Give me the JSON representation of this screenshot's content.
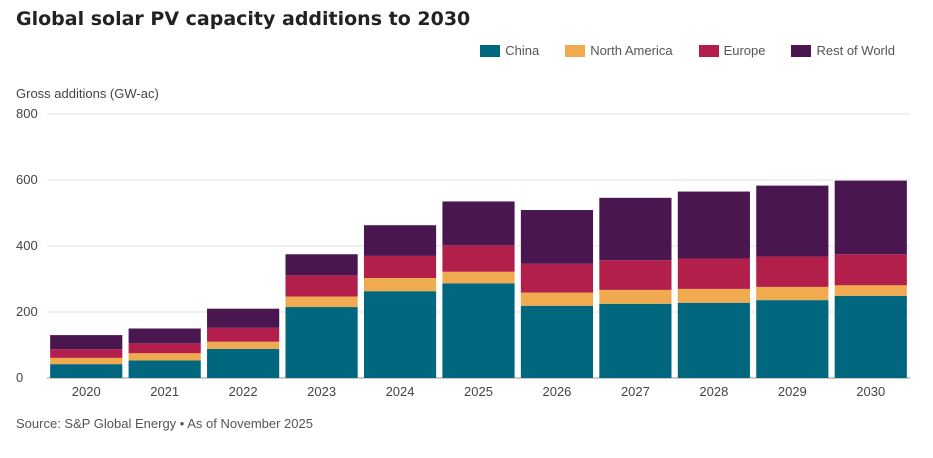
{
  "title": "Global solar PV capacity additions to 2030",
  "source": "Source: S&P Global Energy • As of November 2025",
  "chart_data": {
    "type": "bar",
    "stacked": true,
    "title": "Global solar PV capacity additions to 2030",
    "ylabel": "Gross additions (GW-ac)",
    "xlabel": "",
    "ylim": [
      0,
      800
    ],
    "yticks": [
      0,
      200,
      400,
      600,
      800
    ],
    "grid": true,
    "legend_position": "top-right",
    "categories": [
      "2020",
      "2021",
      "2022",
      "2023",
      "2024",
      "2025",
      "2026",
      "2027",
      "2028",
      "2029",
      "2030"
    ],
    "series": [
      {
        "name": "China",
        "color": "#00677f",
        "values": [
          42,
          53,
          88,
          215,
          263,
          287,
          219,
          225,
          228,
          236,
          249
        ]
      },
      {
        "name": "North America",
        "color": "#f0ab50",
        "values": [
          19,
          22,
          22,
          32,
          40,
          35,
          40,
          42,
          42,
          40,
          32
        ]
      },
      {
        "name": "Europe",
        "color": "#b21f4b",
        "values": [
          26,
          30,
          42,
          64,
          67,
          80,
          87,
          90,
          92,
          92,
          94
        ]
      },
      {
        "name": "Rest of World",
        "color": "#4a1650",
        "values": [
          43,
          45,
          58,
          64,
          93,
          133,
          163,
          189,
          203,
          215,
          223
        ]
      }
    ]
  }
}
